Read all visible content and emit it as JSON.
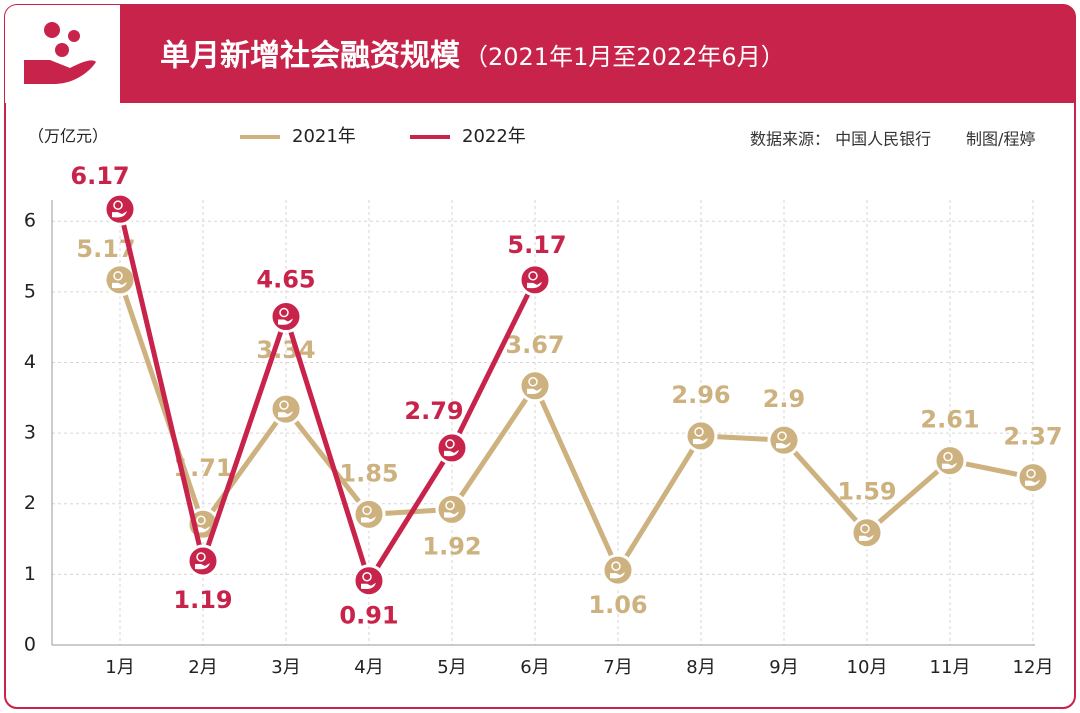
{
  "chart_data": {
    "type": "line",
    "title": "单月新增社会融资规模",
    "subtitle": "（2021年1月至2022年6月）",
    "y_axis_label": "（万亿元）",
    "source": "数据来源： 中国人民银行",
    "credit": "制图/程婷",
    "categories": [
      "1月",
      "2月",
      "3月",
      "4月",
      "5月",
      "6月",
      "7月",
      "8月",
      "9月",
      "10月",
      "11月",
      "12月"
    ],
    "series": [
      {
        "name": "2021年",
        "color": "#cdb17f",
        "values": [
          5.17,
          1.71,
          3.34,
          1.85,
          1.92,
          3.67,
          1.06,
          2.96,
          2.9,
          1.59,
          2.61,
          2.37
        ]
      },
      {
        "name": "2022年",
        "color": "#c8234a",
        "values": [
          6.17,
          1.19,
          4.65,
          0.91,
          2.79,
          5.17,
          null,
          null,
          null,
          null,
          null,
          null
        ]
      }
    ],
    "ylim": [
      0,
      6.3
    ],
    "yticks": [
      0,
      1,
      2,
      3,
      4,
      5,
      6
    ],
    "grid": true
  }
}
